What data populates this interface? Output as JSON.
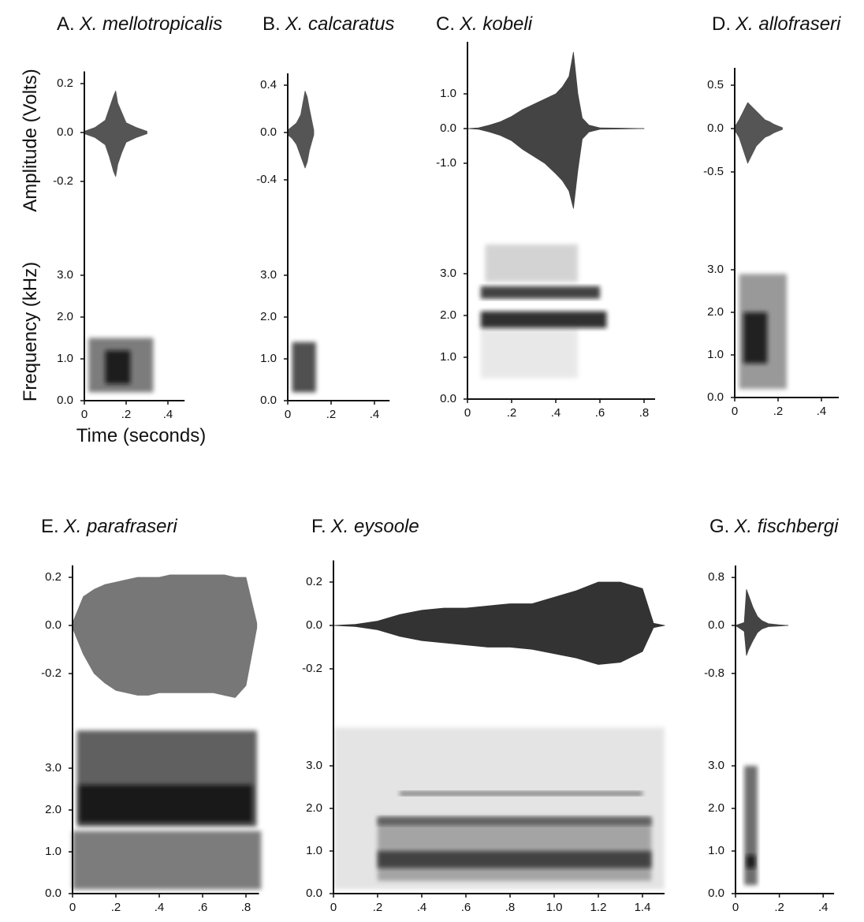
{
  "chart_data": [
    {
      "type": "waveform",
      "letter": "A.",
      "species": "X. mellotropicalis",
      "amplitude_label": "Amplitude (Volts)",
      "frequency_label": "Frequency (kHz)",
      "xlabel": "Time (seconds)",
      "xlim": [
        0,
        0.48
      ],
      "xticks": [
        0,
        {
          "value": 0.2,
          "label": ".2"
        },
        {
          "value": 0.4,
          "label": ".4"
        }
      ],
      "amplitude": {
        "ylim": [
          -0.25,
          0.25
        ],
        "yticks": [
          0.2,
          {
            "value": 0,
            "label": "0.0"
          },
          -0.2
        ],
        "color": "#555",
        "x": [
          0,
          0.05,
          0.1,
          0.12,
          0.14,
          0.15,
          0.16,
          0.18,
          0.2,
          0.25,
          0.3
        ],
        "max": [
          0.005,
          0.02,
          0.05,
          0.1,
          0.15,
          0.17,
          0.12,
          0.08,
          0.04,
          0.02,
          0.005
        ],
        "min": [
          -0.005,
          -0.02,
          -0.05,
          -0.1,
          -0.16,
          -0.18,
          -0.13,
          -0.08,
          -0.04,
          -0.02,
          -0.005
        ]
      },
      "frequency": {
        "ylim": [
          0,
          4
        ],
        "yticks": [
          {
            "value": 0,
            "label": "0.0"
          },
          {
            "value": 1,
            "label": "1.0"
          },
          {
            "value": 2,
            "label": "2.0"
          },
          {
            "value": 3,
            "label": "3.0"
          }
        ],
        "bands": [
          {
            "low": 0.2,
            "high": 1.5,
            "start": 0.02,
            "end": 0.33,
            "color": "#666"
          },
          {
            "low": 0.4,
            "high": 1.2,
            "start": 0.1,
            "end": 0.22,
            "color": "#111"
          }
        ]
      }
    },
    {
      "type": "waveform",
      "letter": "B.",
      "species": "X. calcaratus",
      "xlim": [
        0,
        0.47
      ],
      "xticks": [
        0,
        {
          "value": 0.2,
          "label": ".2"
        },
        {
          "value": 0.4,
          "label": ".4"
        }
      ],
      "amplitude": {
        "ylim": [
          -0.5,
          0.5
        ],
        "yticks": [
          0.4,
          {
            "value": 0,
            "label": "0.0"
          },
          -0.4
        ],
        "color": "#555",
        "x": [
          0,
          0.02,
          0.04,
          0.06,
          0.08,
          0.09,
          0.1,
          0.12
        ],
        "max": [
          0.02,
          0.05,
          0.08,
          0.15,
          0.35,
          0.3,
          0.2,
          0.02
        ],
        "min": [
          -0.02,
          -0.05,
          -0.1,
          -0.2,
          -0.3,
          -0.25,
          -0.15,
          -0.02
        ]
      },
      "frequency": {
        "ylim": [
          0,
          4
        ],
        "yticks": [
          {
            "value": 0,
            "label": "0.0"
          },
          {
            "value": 1,
            "label": "1.0"
          },
          {
            "value": 2,
            "label": "2.0"
          },
          {
            "value": 3,
            "label": "3.0"
          }
        ],
        "bands": [
          {
            "low": 0.2,
            "high": 1.4,
            "start": 0.02,
            "end": 0.13,
            "color": "#333"
          }
        ]
      }
    },
    {
      "type": "waveform",
      "letter": "C.",
      "species": "X. kobeli",
      "xlim": [
        0,
        0.85
      ],
      "xticks": [
        0,
        {
          "value": 0.2,
          "label": ".2"
        },
        {
          "value": 0.4,
          "label": ".4"
        },
        {
          "value": 0.6,
          "label": ".6"
        },
        {
          "value": 0.8,
          "label": ".8"
        }
      ],
      "amplitude": {
        "ylim": [
          -2.5,
          2.5
        ],
        "yticks": [
          {
            "value": 1,
            "label": "1.0"
          },
          {
            "value": 0,
            "label": "0.0"
          },
          {
            "value": -1,
            "label": "-1.0"
          }
        ],
        "color": "#444",
        "x": [
          0,
          0.05,
          0.1,
          0.15,
          0.2,
          0.25,
          0.3,
          0.35,
          0.4,
          0.43,
          0.46,
          0.48,
          0.5,
          0.52,
          0.55,
          0.6,
          0.7,
          0.8
        ],
        "max": [
          0,
          0.02,
          0.1,
          0.2,
          0.35,
          0.55,
          0.7,
          0.85,
          1.0,
          1.2,
          1.5,
          2.2,
          1.0,
          0.3,
          0.1,
          0.02,
          0.01,
          0
        ],
        "min": [
          0,
          -0.02,
          -0.1,
          -0.2,
          -0.35,
          -0.6,
          -0.8,
          -1.0,
          -1.3,
          -1.5,
          -1.8,
          -2.3,
          -1.2,
          -0.3,
          -0.1,
          -0.02,
          -0.01,
          0
        ]
      },
      "frequency": {
        "ylim": [
          0,
          3.8
        ],
        "yticks": [
          {
            "value": 0,
            "label": "0.0"
          },
          {
            "value": 1,
            "label": "1.0"
          },
          {
            "value": 2,
            "label": "2.0"
          },
          {
            "value": 3,
            "label": "3.0"
          }
        ],
        "bands": [
          {
            "low": 2.8,
            "high": 3.7,
            "start": 0.08,
            "end": 0.5,
            "color": "#ccc"
          },
          {
            "low": 0.5,
            "high": 1.7,
            "start": 0.06,
            "end": 0.5,
            "color": "#e5e5e5"
          },
          {
            "low": 2.4,
            "high": 2.7,
            "start": 0.06,
            "end": 0.6,
            "color": "#222"
          },
          {
            "low": 1.7,
            "high": 2.1,
            "start": 0.06,
            "end": 0.63,
            "color": "#111"
          }
        ]
      }
    },
    {
      "type": "waveform",
      "letter": "D.",
      "species": "X. allofraseri",
      "xlim": [
        0,
        0.48
      ],
      "xticks": [
        0,
        {
          "value": 0.2,
          "label": ".2"
        },
        {
          "value": 0.4,
          "label": ".4"
        }
      ],
      "amplitude": {
        "ylim": [
          -0.7,
          0.7
        ],
        "yticks": [
          0.5,
          {
            "value": 0,
            "label": "0.0"
          },
          -0.5
        ],
        "color": "#555",
        "x": [
          0,
          0.02,
          0.04,
          0.06,
          0.08,
          0.1,
          0.12,
          0.14,
          0.16,
          0.18,
          0.2,
          0.22
        ],
        "max": [
          0.02,
          0.1,
          0.2,
          0.3,
          0.25,
          0.2,
          0.15,
          0.1,
          0.08,
          0.05,
          0.03,
          0.01
        ],
        "min": [
          -0.02,
          -0.1,
          -0.25,
          -0.4,
          -0.3,
          -0.2,
          -0.15,
          -0.1,
          -0.08,
          -0.05,
          -0.03,
          -0.01
        ]
      },
      "frequency": {
        "ylim": [
          0,
          3.9
        ],
        "yticks": [
          {
            "value": 0,
            "label": "0.0"
          },
          {
            "value": 1,
            "label": "1.0"
          },
          {
            "value": 2,
            "label": "2.0"
          },
          {
            "value": 3,
            "label": "3.0"
          }
        ],
        "bands": [
          {
            "low": 0.2,
            "high": 2.9,
            "start": 0.02,
            "end": 0.24,
            "color": "#888"
          },
          {
            "low": 0.8,
            "high": 2.0,
            "start": 0.04,
            "end": 0.15,
            "color": "#111"
          }
        ]
      }
    },
    {
      "type": "waveform",
      "letter": "E.",
      "species": "X. parafraseri",
      "xlim": [
        0,
        0.86
      ],
      "xticks": [
        0,
        {
          "value": 0.2,
          "label": ".2"
        },
        {
          "value": 0.4,
          "label": ".4"
        },
        {
          "value": 0.6,
          "label": ".6"
        },
        {
          "value": 0.8,
          "label": ".8"
        }
      ],
      "amplitude": {
        "ylim": [
          -0.25,
          0.25
        ],
        "yticks": [
          0.2,
          {
            "value": 0,
            "label": "0.0"
          },
          -0.2
        ],
        "color": "#777",
        "x": [
          0,
          0.05,
          0.1,
          0.15,
          0.2,
          0.25,
          0.3,
          0.35,
          0.4,
          0.45,
          0.5,
          0.55,
          0.6,
          0.65,
          0.7,
          0.75,
          0.8,
          0.85
        ],
        "max": [
          0.01,
          0.12,
          0.15,
          0.17,
          0.18,
          0.19,
          0.2,
          0.2,
          0.2,
          0.21,
          0.21,
          0.21,
          0.21,
          0.21,
          0.21,
          0.2,
          0.2,
          0.01
        ],
        "min": [
          -0.01,
          -0.12,
          -0.2,
          -0.24,
          -0.27,
          -0.28,
          -0.29,
          -0.29,
          -0.28,
          -0.28,
          -0.28,
          -0.28,
          -0.28,
          -0.28,
          -0.29,
          -0.3,
          -0.25,
          -0.01
        ]
      },
      "frequency": {
        "ylim": [
          0,
          4
        ],
        "yticks": [
          {
            "value": 0,
            "label": "0.0"
          },
          {
            "value": 1,
            "label": "1.0"
          },
          {
            "value": 2,
            "label": "2.0"
          },
          {
            "value": 3,
            "label": "3.0"
          }
        ],
        "bands": [
          {
            "low": 1.6,
            "high": 3.9,
            "start": 0.02,
            "end": 0.85,
            "color": "#444"
          },
          {
            "low": 0.1,
            "high": 1.5,
            "start": 0,
            "end": 0.87,
            "color": "#666"
          },
          {
            "low": 1.7,
            "high": 2.6,
            "start": 0.03,
            "end": 0.83,
            "color": "#111"
          }
        ]
      }
    },
    {
      "type": "waveform",
      "letter": "F.",
      "species": "X. eysoole",
      "xlim": [
        0,
        1.5
      ],
      "xticks": [
        0,
        {
          "value": 0.2,
          "label": ".2"
        },
        {
          "value": 0.4,
          "label": ".4"
        },
        {
          "value": 0.6,
          "label": ".6"
        },
        {
          "value": 0.8,
          "label": ".8"
        },
        {
          "value": 1,
          "label": "1.0"
        },
        1.2,
        1.4
      ],
      "amplitude": {
        "ylim": [
          -0.3,
          0.3
        ],
        "yticks": [
          0.2,
          {
            "value": 0,
            "label": "0.0"
          },
          -0.2
        ],
        "color": "#333",
        "x": [
          0,
          0.1,
          0.2,
          0.3,
          0.4,
          0.5,
          0.6,
          0.7,
          0.8,
          0.9,
          1.0,
          1.1,
          1.2,
          1.3,
          1.4,
          1.45,
          1.5
        ],
        "max": [
          0,
          0.005,
          0.02,
          0.05,
          0.07,
          0.08,
          0.08,
          0.09,
          0.1,
          0.1,
          0.13,
          0.16,
          0.2,
          0.2,
          0.17,
          0.01,
          0
        ],
        "min": [
          0,
          -0.005,
          -0.02,
          -0.05,
          -0.07,
          -0.08,
          -0.09,
          -0.1,
          -0.1,
          -0.11,
          -0.13,
          -0.15,
          -0.18,
          -0.17,
          -0.12,
          -0.01,
          0
        ]
      },
      "frequency": {
        "ylim": [
          0,
          4
        ],
        "yticks": [
          {
            "value": 0,
            "label": "0.0"
          },
          {
            "value": 1,
            "label": "1.0"
          },
          {
            "value": 2,
            "label": "2.0"
          },
          {
            "value": 3,
            "label": "3.0"
          }
        ],
        "bands": [
          {
            "low": 0.1,
            "high": 3.9,
            "start": 0,
            "end": 1.5,
            "color": "#e0e0e0"
          },
          {
            "low": 0.3,
            "high": 1.8,
            "start": 0.2,
            "end": 1.44,
            "color": "#999"
          },
          {
            "low": 2.3,
            "high": 2.4,
            "start": 0.3,
            "end": 1.4,
            "color": "#666"
          },
          {
            "low": 1.6,
            "high": 1.8,
            "start": 0.2,
            "end": 1.44,
            "color": "#555"
          },
          {
            "low": 0.6,
            "high": 1.0,
            "start": 0.2,
            "end": 1.44,
            "color": "#333"
          }
        ]
      }
    },
    {
      "type": "waveform",
      "letter": "G.",
      "species": "X. fischbergi",
      "xlim": [
        0,
        0.45
      ],
      "xticks": [
        0,
        {
          "value": 0.2,
          "label": ".2"
        },
        {
          "value": 0.4,
          "label": ".4"
        }
      ],
      "amplitude": {
        "ylim": [
          -1,
          1
        ],
        "yticks": [
          0.8,
          {
            "value": 0,
            "label": "0.0"
          },
          -0.8
        ],
        "color": "#444",
        "x": [
          0,
          0.04,
          0.05,
          0.06,
          0.08,
          0.1,
          0.12,
          0.15,
          0.2,
          0.24
        ],
        "max": [
          0,
          0.05,
          0.6,
          0.5,
          0.3,
          0.15,
          0.08,
          0.03,
          0.01,
          0
        ],
        "min": [
          0,
          -0.1,
          -0.5,
          -0.4,
          -0.25,
          -0.12,
          -0.06,
          -0.02,
          -0.01,
          0
        ]
      },
      "frequency": {
        "ylim": [
          0,
          4
        ],
        "yticks": [
          {
            "value": 0,
            "label": "0.0"
          },
          {
            "value": 1,
            "label": "1.0"
          },
          {
            "value": 2,
            "label": "2.0"
          },
          {
            "value": 3,
            "label": "3.0"
          }
        ],
        "bands": [
          {
            "low": 0.2,
            "high": 3.0,
            "start": 0.04,
            "end": 0.1,
            "color": "#555"
          },
          {
            "low": 0.6,
            "high": 0.9,
            "start": 0.05,
            "end": 0.09,
            "color": "#111"
          }
        ]
      }
    }
  ]
}
